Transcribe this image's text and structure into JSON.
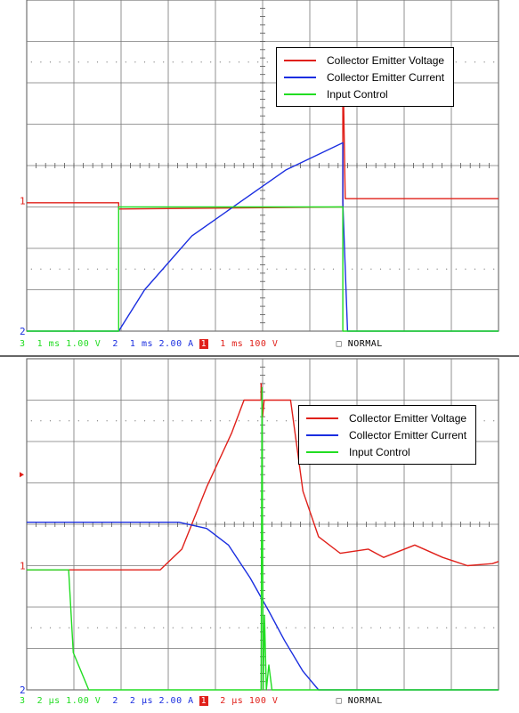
{
  "chart_data": [
    {
      "type": "line",
      "legend": {
        "placement": "top-right",
        "entries": [
          {
            "name": "Collector Emitter Voltage",
            "color": "#e0201a"
          },
          {
            "name": "Collector Emitter Current",
            "color": "#1a2ee0"
          },
          {
            "name": "Input Control",
            "color": "#22dd22"
          }
        ]
      },
      "grid": true,
      "x_divisions": 10,
      "y_divisions": 8,
      "channel_markers": [
        {
          "label": "1",
          "color": "#e0201a",
          "y_div": 3.15
        },
        {
          "label": "2",
          "color": "#1a2ee0",
          "y_div": 0.0
        }
      ],
      "readout": [
        {
          "text": "3",
          "color": "#22dd22"
        },
        {
          "text": "  1 ms 1.00 V",
          "color": "#22dd22"
        },
        {
          "text": "  2",
          "color": "#1a2ee0"
        },
        {
          "text": "  1 ms 2.00 A",
          "color": "#1a2ee0"
        },
        {
          "text": "  1",
          "color": "#e0201a",
          "box": true
        },
        {
          "text": "  1 ms 100 V",
          "color": "#e0201a"
        },
        {
          "text": "          ",
          "color": "#000"
        },
        {
          "text": "NORMAL",
          "color": "#000",
          "square": true
        }
      ],
      "series": [
        {
          "name": "Collector Emitter Voltage",
          "color": "#e0201a",
          "points": [
            [
              0,
              3.1
            ],
            [
              1.95,
              3.1
            ],
            [
              1.95,
              2.95
            ],
            [
              6.7,
              3.0
            ],
            [
              6.7,
              6.7
            ],
            [
              6.75,
              3.2
            ],
            [
              10,
              3.2
            ]
          ]
        },
        {
          "name": "Collector Emitter Current",
          "color": "#1a2ee0",
          "points": [
            [
              0,
              0
            ],
            [
              1.95,
              0
            ],
            [
              2.5,
              1.0
            ],
            [
              3.5,
              2.3
            ],
            [
              4.5,
              3.1
            ],
            [
              5.5,
              3.9
            ],
            [
              6.7,
              4.55
            ],
            [
              6.7,
              3.1
            ],
            [
              6.8,
              0
            ],
            [
              10,
              0
            ]
          ]
        },
        {
          "name": "Input Control",
          "color": "#22dd22",
          "points": [
            [
              0,
              0
            ],
            [
              1.95,
              0
            ],
            [
              1.95,
              3.0
            ],
            [
              6.7,
              3.0
            ],
            [
              6.7,
              0
            ],
            [
              10,
              0
            ]
          ]
        }
      ]
    },
    {
      "type": "line",
      "legend": {
        "placement": "top-right",
        "entries": [
          {
            "name": "Collector Emitter Voltage",
            "color": "#e0201a"
          },
          {
            "name": "Collector Emitter Current",
            "color": "#1a2ee0"
          },
          {
            "name": "Input Control",
            "color": "#22dd22"
          }
        ]
      },
      "grid": true,
      "x_divisions": 10,
      "y_divisions": 8,
      "channel_markers": [
        {
          "label": "1",
          "color": "#e0201a",
          "y_div": 3.0
        },
        {
          "label": "2",
          "color": "#1a2ee0",
          "y_div": 0.0
        },
        {
          "label": "",
          "color": "#e0201a",
          "y_div": 5.2
        }
      ],
      "readout": [
        {
          "text": "3",
          "color": "#22dd22"
        },
        {
          "text": "  2 µs 1.00 V",
          "color": "#22dd22"
        },
        {
          "text": "  2",
          "color": "#1a2ee0"
        },
        {
          "text": "  2 µs 2.00 A",
          "color": "#1a2ee0"
        },
        {
          "text": "  1",
          "color": "#e0201a",
          "box": true
        },
        {
          "text": "  2 µs 100 V",
          "color": "#e0201a"
        },
        {
          "text": "          ",
          "color": "#000"
        },
        {
          "text": "NORMAL",
          "color": "#000",
          "square": true
        }
      ],
      "series": [
        {
          "name": "Collector Emitter Voltage",
          "color": "#e0201a",
          "points": [
            [
              0,
              2.9
            ],
            [
              4.3,
              2.9
            ],
            [
              5.0,
              3.4
            ],
            [
              5.8,
              4.9
            ],
            [
              6.6,
              6.2
            ],
            [
              7.0,
              7.0
            ],
            [
              7.55,
              7.0
            ],
            [
              7.55,
              7.4
            ],
            [
              7.6,
              6.6
            ],
            [
              7.65,
              7.0
            ],
            [
              8.5,
              7.0
            ],
            [
              8.9,
              4.8
            ],
            [
              9.4,
              3.7
            ],
            [
              10.1,
              3.3
            ],
            [
              11.0,
              3.4
            ],
            [
              11.5,
              3.2
            ],
            [
              12.5,
              3.5
            ],
            [
              13.4,
              3.2
            ],
            [
              14.2,
              3.0
            ],
            [
              15.0,
              3.05
            ],
            [
              15.2,
              3.1
            ]
          ]
        },
        {
          "name": "Collector Emitter Current",
          "color": "#1a2ee0",
          "points": [
            [
              0,
              4.05
            ],
            [
              4.9,
              4.05
            ],
            [
              5.8,
              3.9
            ],
            [
              6.5,
              3.5
            ],
            [
              7.2,
              2.7
            ],
            [
              7.8,
              1.9
            ],
            [
              8.3,
              1.2
            ],
            [
              8.9,
              0.45
            ],
            [
              9.4,
              0.0
            ],
            [
              15.2,
              0.0
            ]
          ]
        },
        {
          "name": "Input Control",
          "color": "#22dd22",
          "points": [
            [
              0,
              2.9
            ],
            [
              1.35,
              2.9
            ],
            [
              1.5,
              0.9
            ],
            [
              2.0,
              0.0
            ],
            [
              7.55,
              0.0
            ],
            [
              7.58,
              7.3
            ],
            [
              7.62,
              0.0
            ],
            [
              7.66,
              1.8
            ],
            [
              7.72,
              0.0
            ],
            [
              7.8,
              0.6
            ],
            [
              7.9,
              0.0
            ],
            [
              15.2,
              0.0
            ]
          ]
        }
      ]
    }
  ]
}
